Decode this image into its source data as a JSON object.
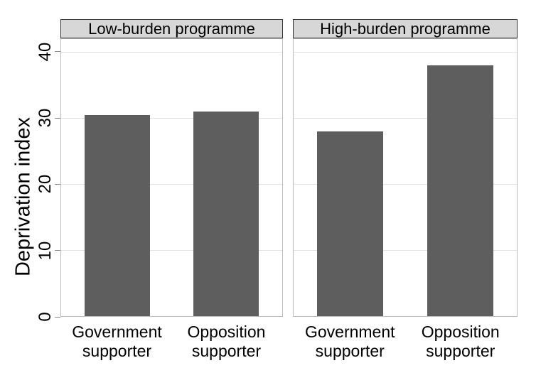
{
  "chart_data": {
    "type": "bar",
    "title": "",
    "ylabel": "Deprivation index",
    "xlabel": "",
    "ylim": [
      0,
      42
    ],
    "yticks": [
      0,
      10,
      20,
      30,
      40
    ],
    "grid": "horizontal gridlines at y ticks, light gray",
    "legend": "none",
    "categories": [
      "Government\nsupporter",
      "Opposition\nsupporter"
    ],
    "panels": [
      {
        "label": "Low-burden programme",
        "values": [
          30.5,
          31
        ]
      },
      {
        "label": "High-burden programme",
        "values": [
          28,
          38
        ]
      }
    ],
    "colors": {
      "bar": "#5e5e5e",
      "strip_fill": "#d7d7d7",
      "strip_border": "#333333",
      "panel_border": "#bdbdbd",
      "gridline": "#e3e3e3",
      "tick_mark": "#8c8c8c",
      "text": "#000000",
      "background": "#ffffff"
    }
  }
}
